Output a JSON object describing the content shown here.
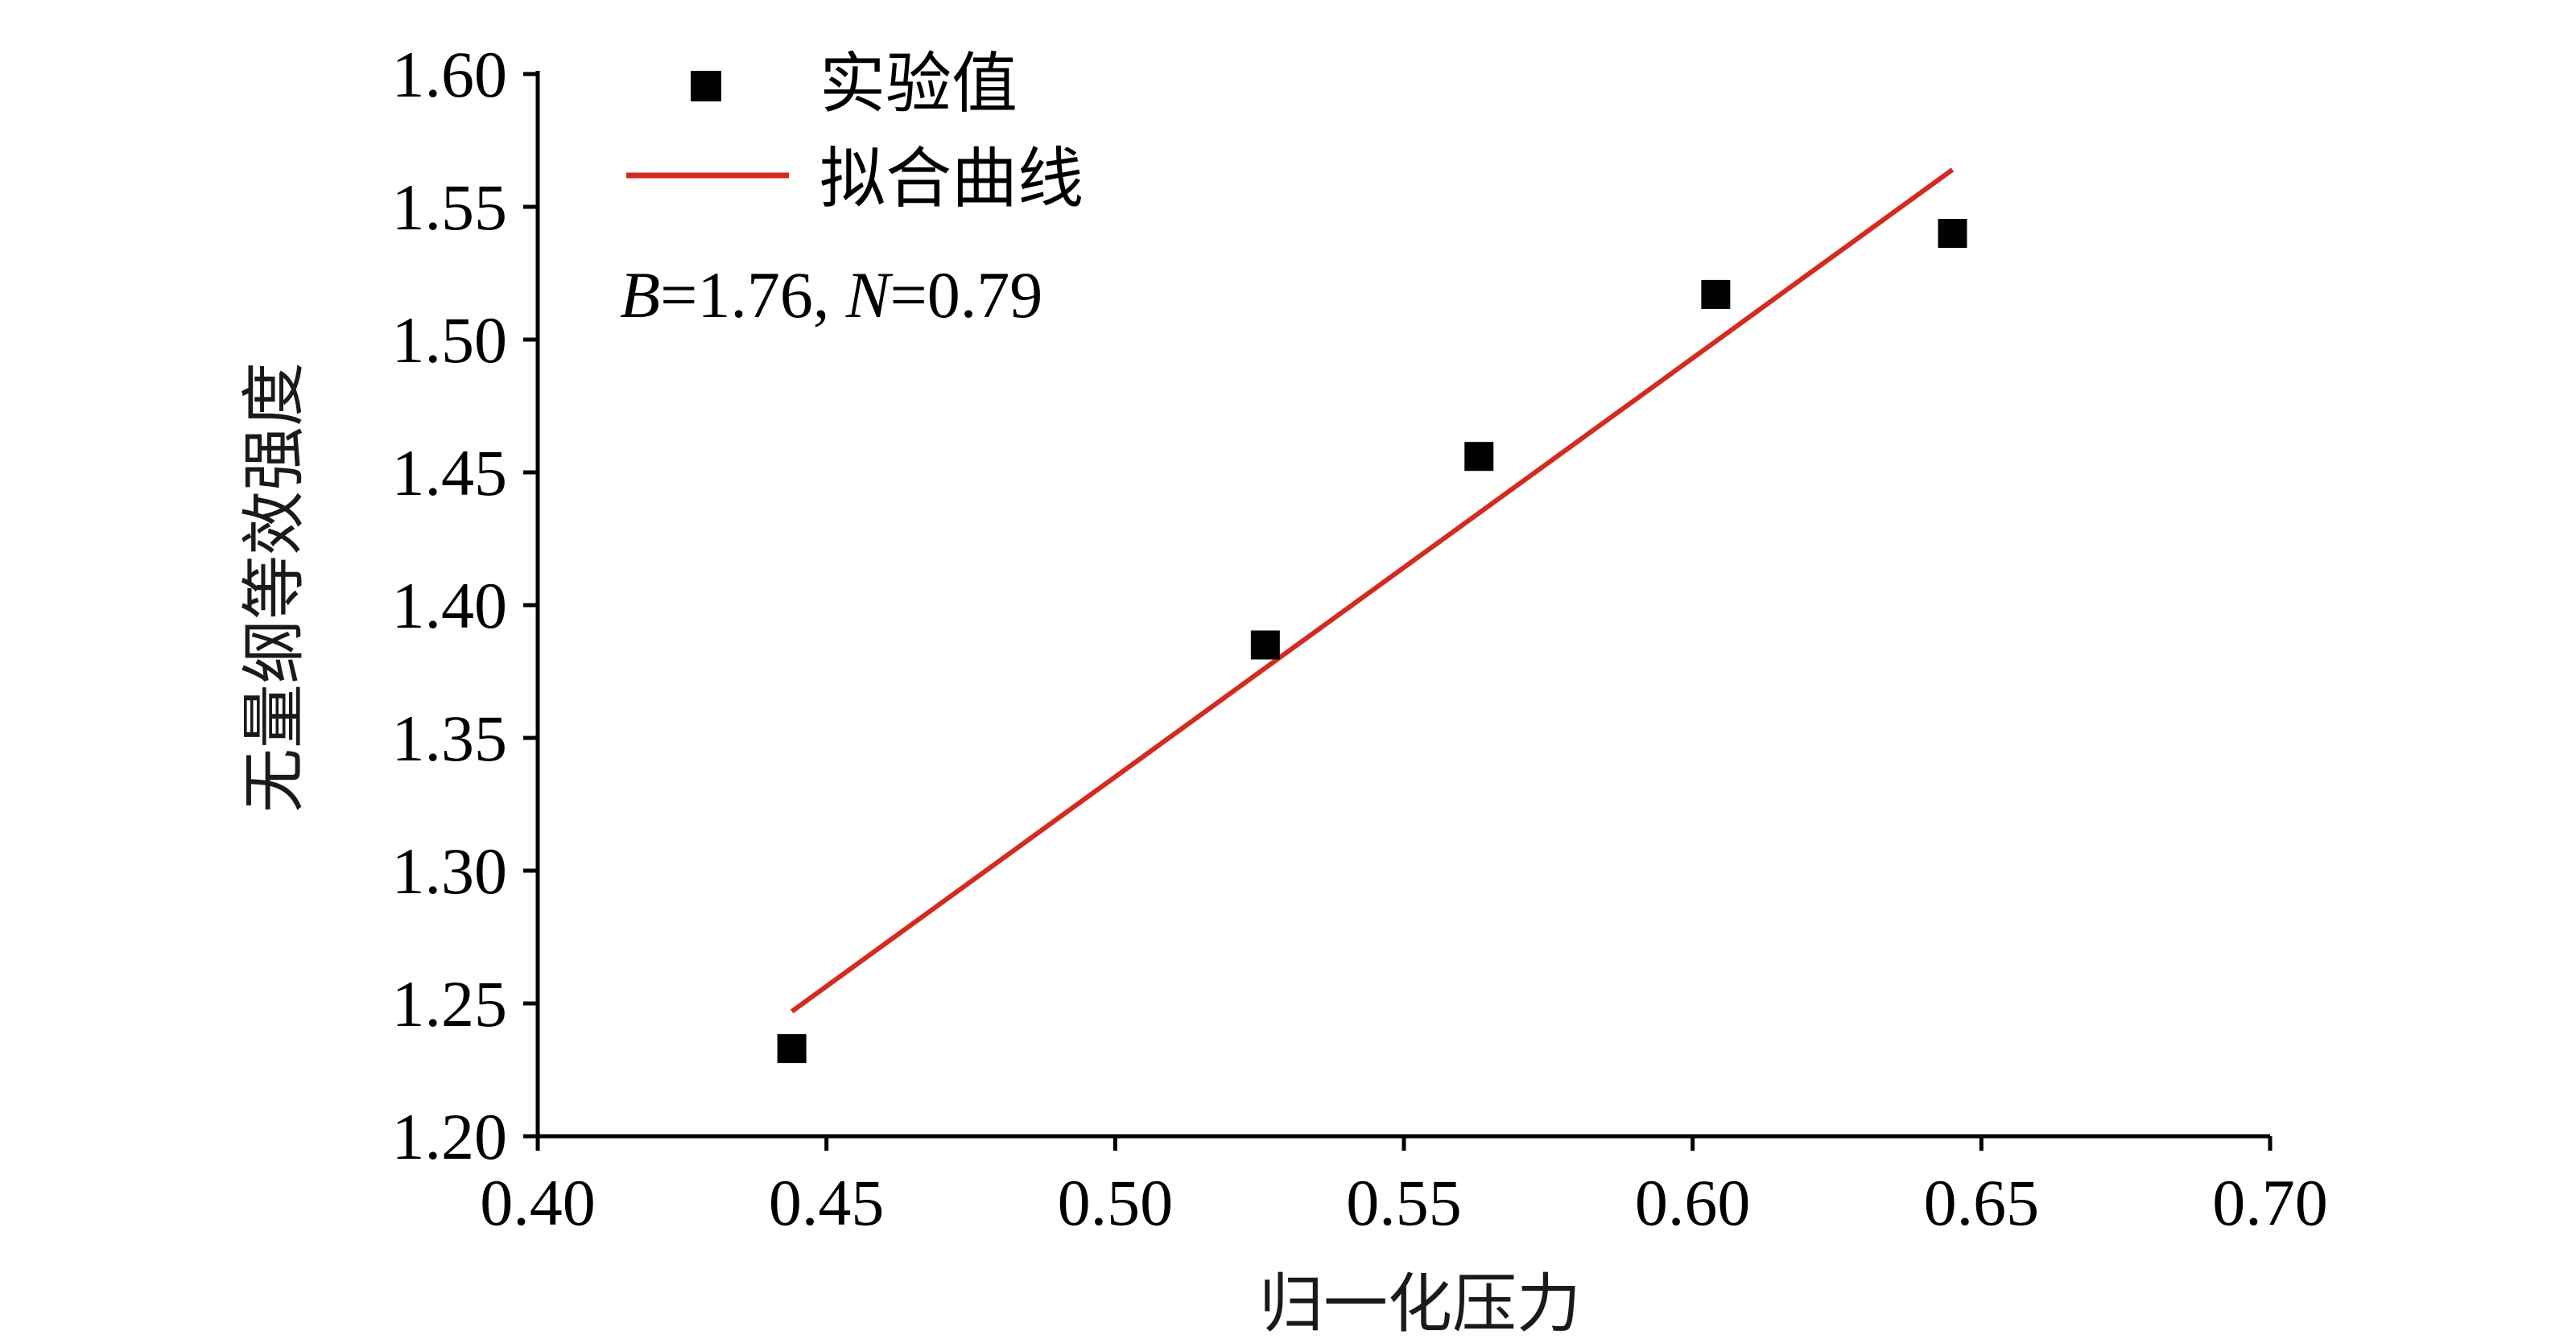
{
  "chart_data": {
    "type": "scatter",
    "xlabel": "归一化压力",
    "ylabel": "无量纲等效强度",
    "xlim": [
      0.4,
      0.7
    ],
    "ylim": [
      1.2,
      1.6
    ],
    "xticks": [
      0.4,
      0.45,
      0.5,
      0.55,
      0.6,
      0.65,
      0.7
    ],
    "yticks": [
      1.2,
      1.25,
      1.3,
      1.35,
      1.4,
      1.45,
      1.5,
      1.55,
      1.6
    ],
    "xtick_labels": [
      "0.40",
      "0.45",
      "0.50",
      "0.55",
      "0.60",
      "0.65",
      "0.70"
    ],
    "ytick_labels": [
      "1.20",
      "1.25",
      "1.30",
      "1.35",
      "1.40",
      "1.45",
      "1.50",
      "1.55",
      "1.60"
    ],
    "grid": false,
    "legend_position": "top-left",
    "series": [
      {
        "name": "实验值",
        "kind": "scatter",
        "marker": "square",
        "color": "#000000",
        "x": [
          0.444,
          0.526,
          0.563,
          0.604,
          0.645
        ],
        "y": [
          1.233,
          1.385,
          1.456,
          1.517,
          1.54
        ]
      },
      {
        "name": "拟合曲线",
        "kind": "line",
        "color": "#d42a20",
        "x": [
          0.444,
          0.645
        ],
        "y": [
          1.247,
          1.564
        ]
      }
    ],
    "annotation": {
      "b_label": "B",
      "b_value": "=1.76, ",
      "n_label": "N",
      "n_value": "=0.79"
    }
  }
}
